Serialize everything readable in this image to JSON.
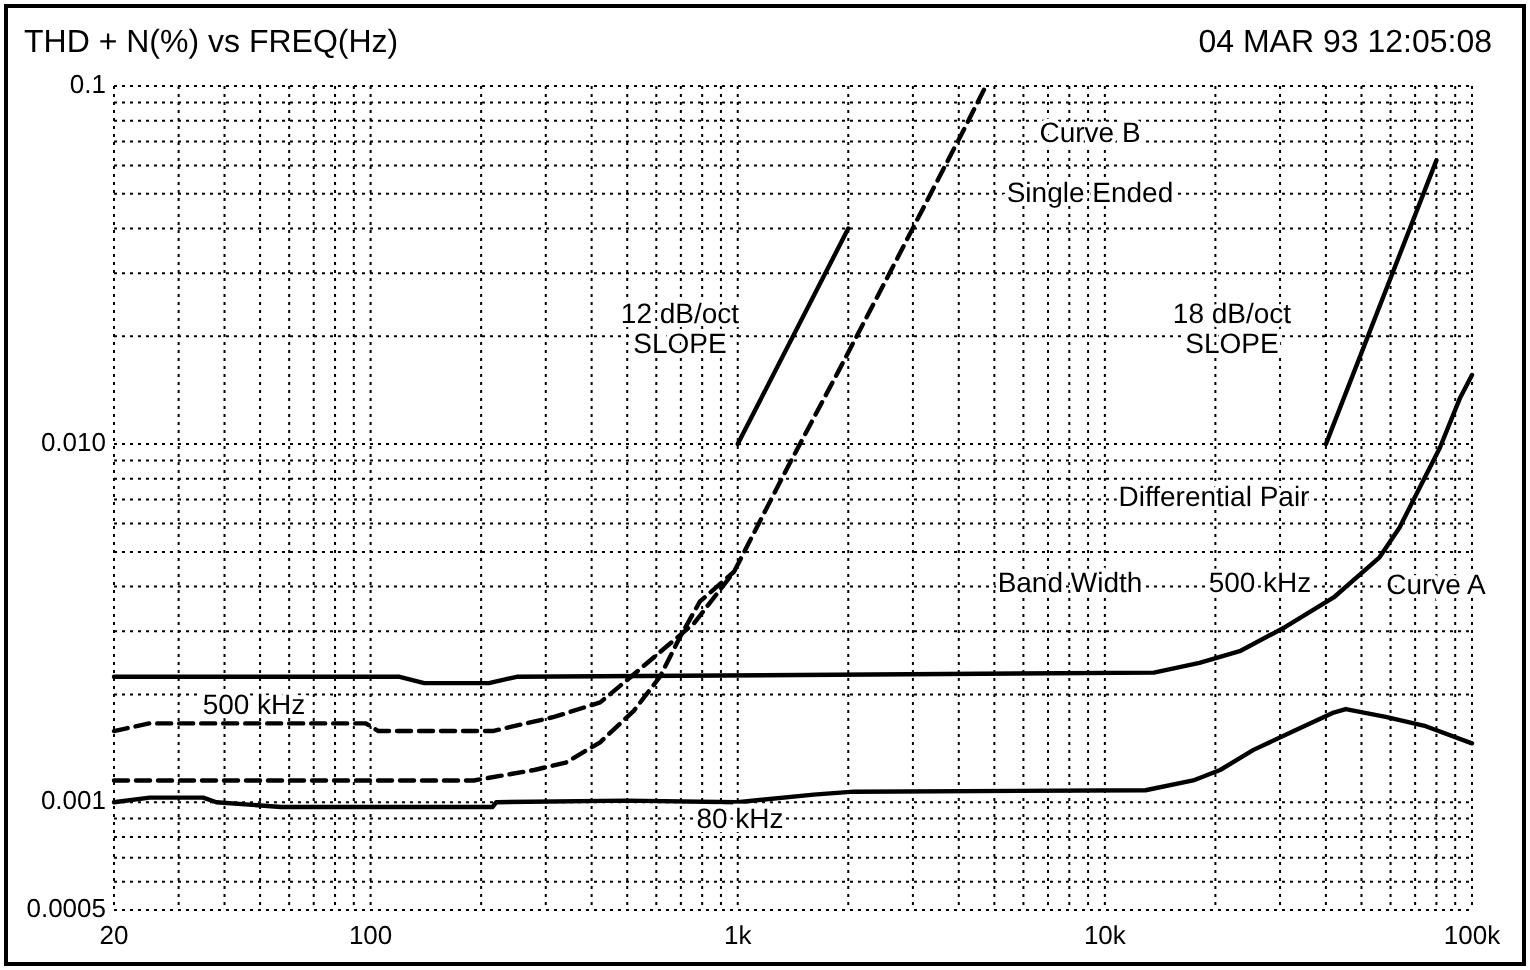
{
  "chart_data": {
    "type": "line",
    "title": "THD + N(%) vs FREQ(Hz)",
    "subtitle": "04 MAR 93 12:05:08",
    "log": "xy",
    "grid": true,
    "marker": "none",
    "xlim": [
      20,
      100000
    ],
    "ylim": [
      0.0005,
      0.1
    ],
    "xticks": [
      20,
      {
        "value": 30,
        "label": null
      },
      {
        "value": 40,
        "label": null
      },
      {
        "value": 50,
        "label": null
      },
      {
        "value": 60,
        "label": null
      },
      {
        "value": 70,
        "label": null
      },
      {
        "value": 80,
        "label": null
      },
      {
        "value": 90,
        "label": null
      },
      100,
      {
        "value": 200,
        "label": null
      },
      {
        "value": 300,
        "label": null
      },
      {
        "value": 400,
        "label": null
      },
      {
        "value": 500,
        "label": null
      },
      {
        "value": 600,
        "label": null
      },
      {
        "value": 700,
        "label": null
      },
      {
        "value": 800,
        "label": null
      },
      {
        "value": 900,
        "label": null
      },
      {
        "value": 1000,
        "label": "1k"
      },
      {
        "value": 2000,
        "label": null
      },
      {
        "value": 3000,
        "label": null
      },
      {
        "value": 4000,
        "label": null
      },
      {
        "value": 5000,
        "label": null
      },
      {
        "value": 6000,
        "label": null
      },
      {
        "value": 7000,
        "label": null
      },
      {
        "value": 8000,
        "label": null
      },
      {
        "value": 9000,
        "label": null
      },
      {
        "value": 10000,
        "label": "10k"
      },
      {
        "value": 20000,
        "label": null
      },
      {
        "value": 30000,
        "label": null
      },
      {
        "value": 40000,
        "label": null
      },
      {
        "value": 50000,
        "label": null
      },
      {
        "value": 60000,
        "label": null
      },
      {
        "value": 70000,
        "label": null
      },
      {
        "value": 80000,
        "label": null
      },
      {
        "value": 90000,
        "label": null
      },
      {
        "value": 100000,
        "label": "100k"
      }
    ],
    "yticks": [
      0.0005,
      {
        "value": 0.0006,
        "label": null
      },
      {
        "value": 0.0007,
        "label": null
      },
      {
        "value": 0.0008,
        "label": null
      },
      {
        "value": 0.0009,
        "label": null
      },
      0.001,
      {
        "value": 0.002,
        "label": null
      },
      {
        "value": 0.003,
        "label": null
      },
      {
        "value": 0.004,
        "label": null
      },
      {
        "value": 0.005,
        "label": null
      },
      {
        "value": 0.006,
        "label": null
      },
      {
        "value": 0.007,
        "label": null
      },
      {
        "value": 0.008,
        "label": null
      },
      {
        "value": 0.009,
        "label": null
      },
      {
        "value": 0.01,
        "label": "0.010"
      },
      {
        "value": 0.02,
        "label": null
      },
      {
        "value": 0.03,
        "label": null
      },
      {
        "value": 0.04,
        "label": null
      },
      {
        "value": 0.05,
        "label": null
      },
      {
        "value": 0.06,
        "label": null
      },
      {
        "value": 0.07,
        "label": null
      },
      {
        "value": 0.08,
        "label": null
      },
      {
        "value": 0.09,
        "label": null
      },
      0.1
    ],
    "series": [
      {
        "color": "#000000",
        "line_style": "solid",
        "x": [
          20,
          120,
          140,
          210,
          250,
          13600,
          18100,
          23300,
          31100,
          42000,
          56000,
          63500,
          72000,
          81700,
          92600,
          100000
        ],
        "values": [
          0.00224,
          0.00224,
          0.00215,
          0.00215,
          0.00224,
          0.0023,
          0.00245,
          0.00264,
          0.00309,
          0.00373,
          0.00483,
          0.00585,
          0.00755,
          0.00975,
          0.0134,
          0.0156
        ]
      },
      {
        "color": "#000000",
        "line_style": "dashed",
        "x": [
          20,
          25,
          57,
          97,
          105,
          215,
          316,
          422,
          496,
          760,
          977,
          1350,
          1900,
          2660,
          4180,
          4740
        ],
        "values": [
          0.00158,
          0.00166,
          0.00166,
          0.00166,
          0.00158,
          0.00158,
          0.00173,
          0.0019,
          0.00218,
          0.00316,
          0.0044,
          0.0084,
          0.0163,
          0.0316,
          0.0774,
          0.1
        ]
      },
      {
        "color": "#000000",
        "line_style": "dashed",
        "x": [
          20,
          191,
          279,
          340,
          422,
          521,
          614,
          696,
          788,
          977
        ],
        "values": [
          0.00115,
          0.00115,
          0.00123,
          0.00129,
          0.00147,
          0.0018,
          0.00224,
          0.00289,
          0.00363,
          0.0044
        ]
      },
      {
        "color": "#000000",
        "line_style": "solid",
        "x": [
          20,
          25,
          35,
          38,
          57,
          215,
          220,
          496,
          1000,
          1610,
          2070,
          12900,
          17400,
          20600,
          25400,
          32700,
          42000,
          45300,
          58200,
          74800,
          100000
        ],
        "values": [
          0.001,
          0.00103,
          0.00103,
          0.001,
          0.00097,
          0.00097,
          0.001,
          0.00101,
          0.001,
          0.00105,
          0.00107,
          0.00108,
          0.00115,
          0.00123,
          0.0014,
          0.00158,
          0.00178,
          0.00182,
          0.00173,
          0.00163,
          0.00146
        ]
      },
      {
        "color": "#000000",
        "line_style": "solid",
        "x": [
          1000,
          2000
        ],
        "values": [
          0.01,
          0.04
        ]
      },
      {
        "color": "#000000",
        "line_style": "solid",
        "x": [
          40000,
          80000
        ],
        "values": [
          0.01,
          0.062
        ]
      }
    ],
    "annotations": [
      "Curve B",
      "Single Ended",
      "12 dB/oct\nSLOPE",
      "18 dB/oct\nSLOPE",
      "Differential Pair",
      "Band Width",
      "500 kHz",
      "Curve A",
      "500 kHz",
      "80 kHz"
    ]
  }
}
